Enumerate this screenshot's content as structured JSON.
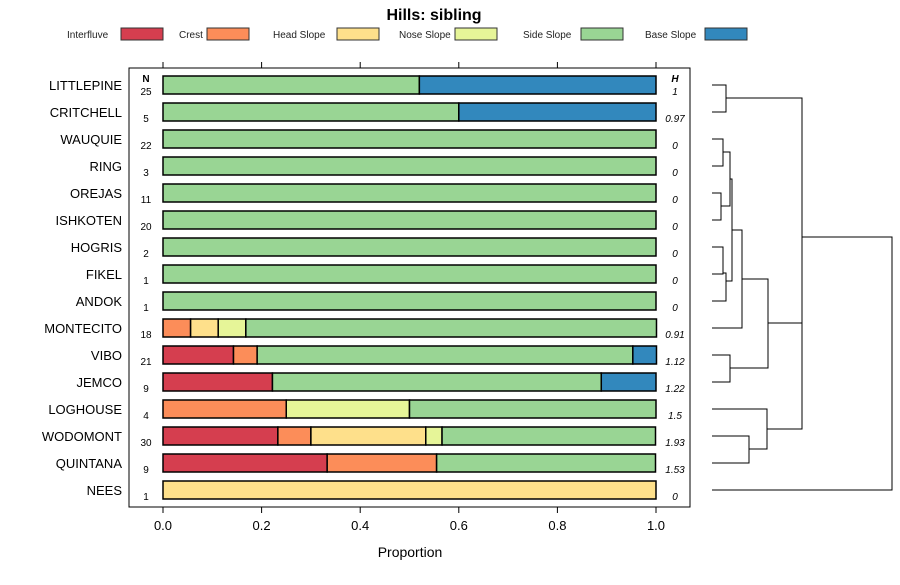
{
  "chart_data": {
    "type": "bar",
    "orientation": "horizontal-stacked",
    "title": "Hills: sibling",
    "xlabel": "Proportion",
    "xlim": [
      0,
      1
    ],
    "x_ticks": [
      "0.0",
      "0.2",
      "0.4",
      "0.6",
      "0.8",
      "1.0"
    ],
    "n_header": "N",
    "h_header": "H",
    "legend_position": "top",
    "series": [
      {
        "name": "Interfluve",
        "color": "#D53E4F"
      },
      {
        "name": "Crest",
        "color": "#FC8D59"
      },
      {
        "name": "Head Slope",
        "color": "#FEE08B"
      },
      {
        "name": "Nose Slope",
        "color": "#E6F598"
      },
      {
        "name": "Side Slope",
        "color": "#99D594"
      },
      {
        "name": "Base Slope",
        "color": "#3288BD"
      }
    ],
    "categories": [
      "LITTLEPINE",
      "CRITCHELL",
      "WAUQUIE",
      "RING",
      "OREJAS",
      "ISHKOTEN",
      "HOGRIS",
      "FIKEL",
      "ANDOK",
      "MONTECITO",
      "VIBO",
      "JEMCO",
      "LOGHOUSE",
      "WODOMONT",
      "QUINTANA",
      "NEES"
    ],
    "n": [
      "25",
      "5",
      "22",
      "3",
      "11",
      "20",
      "2",
      "1",
      "1",
      "18",
      "21",
      "9",
      "4",
      "30",
      "9",
      "1"
    ],
    "h": [
      "1",
      "0.97",
      "0",
      "0",
      "0",
      "0",
      "0",
      "0",
      "0",
      "0.91",
      "1.12",
      "1.22",
      "1.5",
      "1.93",
      "1.53",
      "0"
    ],
    "values": [
      [
        0,
        0,
        0,
        0,
        0.52,
        0.48
      ],
      [
        0,
        0,
        0,
        0,
        0.6,
        0.4
      ],
      [
        0,
        0,
        0,
        0,
        1,
        0
      ],
      [
        0,
        0,
        0,
        0,
        1,
        0
      ],
      [
        0,
        0,
        0,
        0,
        1,
        0
      ],
      [
        0,
        0,
        0,
        0,
        1,
        0
      ],
      [
        0,
        0,
        0,
        0,
        1,
        0
      ],
      [
        0,
        0,
        0,
        0,
        1,
        0
      ],
      [
        0,
        0,
        0,
        0,
        1,
        0
      ],
      [
        0,
        0.056,
        0.056,
        0.056,
        0.833,
        0
      ],
      [
        0.143,
        0.048,
        0,
        0,
        0.762,
        0.048
      ],
      [
        0.222,
        0,
        0,
        0,
        0.667,
        0.111
      ],
      [
        0,
        0.25,
        0,
        0.25,
        0.5,
        0
      ],
      [
        0.233,
        0.067,
        0.233,
        0.033,
        0.433,
        0
      ],
      [
        0.333,
        0.222,
        0,
        0,
        0.444,
        0
      ],
      [
        0,
        0,
        1,
        0,
        0,
        0
      ]
    ]
  }
}
